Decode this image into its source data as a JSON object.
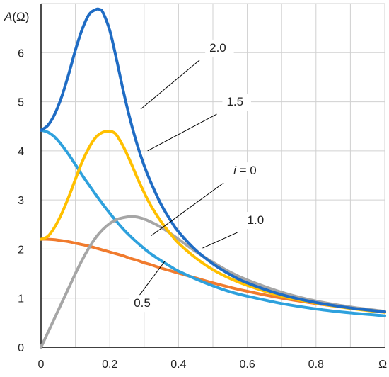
{
  "chart_data": {
    "type": "line",
    "ylabel": "A(Ω)",
    "xlabel": "Ω",
    "xlim": [
      0,
      1.0
    ],
    "ylim": [
      0,
      7.0
    ],
    "x_ticks": [
      "0",
      "0.2",
      "0.4",
      "0.6",
      "0.8",
      "Ω"
    ],
    "y_ticks": [
      "0",
      "1",
      "2",
      "3",
      "4",
      "5",
      "6"
    ],
    "grid": true,
    "series": [
      {
        "name": "2.0",
        "color": "#1f6cc4",
        "x": [
          0,
          0.02,
          0.04,
          0.06,
          0.08,
          0.1,
          0.12,
          0.14,
          0.16,
          0.17,
          0.18,
          0.2,
          0.22,
          0.24,
          0.26,
          0.28,
          0.3,
          0.32,
          0.35,
          0.38,
          0.4,
          0.45,
          0.5,
          0.55,
          0.6,
          0.7,
          0.8,
          0.9,
          1.0
        ],
        "y": [
          4.42,
          4.52,
          4.75,
          5.1,
          5.55,
          6.05,
          6.48,
          6.78,
          6.88,
          6.88,
          6.82,
          6.45,
          5.85,
          5.2,
          4.62,
          4.12,
          3.7,
          3.35,
          2.9,
          2.55,
          2.35,
          1.98,
          1.7,
          1.48,
          1.31,
          1.07,
          0.91,
          0.8,
          0.72
        ]
      },
      {
        "name": "1.5",
        "color": "#ffc000",
        "x": [
          0,
          0.02,
          0.04,
          0.06,
          0.08,
          0.1,
          0.12,
          0.14,
          0.16,
          0.18,
          0.2,
          0.21,
          0.22,
          0.24,
          0.26,
          0.28,
          0.3,
          0.32,
          0.35,
          0.38,
          0.4,
          0.45,
          0.5,
          0.55,
          0.6,
          0.7,
          0.8,
          0.9,
          1.0
        ],
        "y": [
          2.2,
          2.26,
          2.45,
          2.72,
          3.05,
          3.42,
          3.78,
          4.07,
          4.28,
          4.38,
          4.4,
          4.38,
          4.32,
          4.08,
          3.78,
          3.45,
          3.15,
          2.88,
          2.55,
          2.28,
          2.12,
          1.82,
          1.58,
          1.4,
          1.26,
          1.04,
          0.9,
          0.79,
          0.71
        ]
      },
      {
        "name": "i = 0",
        "color": "#a6a6a6",
        "x": [
          0,
          0.02,
          0.04,
          0.06,
          0.08,
          0.1,
          0.12,
          0.14,
          0.16,
          0.18,
          0.2,
          0.22,
          0.24,
          0.26,
          0.28,
          0.3,
          0.32,
          0.35,
          0.38,
          0.4,
          0.45,
          0.5,
          0.55,
          0.6,
          0.7,
          0.8,
          0.9,
          1.0
        ],
        "y": [
          0.0,
          0.3,
          0.6,
          0.9,
          1.2,
          1.5,
          1.78,
          2.03,
          2.24,
          2.4,
          2.52,
          2.6,
          2.64,
          2.66,
          2.65,
          2.61,
          2.55,
          2.44,
          2.3,
          2.2,
          1.95,
          1.73,
          1.53,
          1.37,
          1.12,
          0.94,
          0.82,
          0.73
        ]
      },
      {
        "name": "1.0",
        "color": "#2ea1dd",
        "x": [
          0,
          0.02,
          0.04,
          0.06,
          0.08,
          0.1,
          0.12,
          0.14,
          0.16,
          0.18,
          0.2,
          0.22,
          0.24,
          0.26,
          0.28,
          0.3,
          0.32,
          0.35,
          0.38,
          0.4,
          0.45,
          0.5,
          0.55,
          0.6,
          0.7,
          0.8,
          0.9,
          1.0
        ],
        "y": [
          4.42,
          4.38,
          4.28,
          4.12,
          3.93,
          3.72,
          3.5,
          3.3,
          3.1,
          2.91,
          2.73,
          2.56,
          2.4,
          2.26,
          2.13,
          2.01,
          1.9,
          1.76,
          1.63,
          1.55,
          1.39,
          1.25,
          1.13,
          1.04,
          0.89,
          0.78,
          0.7,
          0.64
        ]
      },
      {
        "name": "0.5",
        "color": "#f07b2e",
        "x": [
          0,
          0.02,
          0.04,
          0.06,
          0.08,
          0.1,
          0.12,
          0.14,
          0.16,
          0.18,
          0.2,
          0.22,
          0.24,
          0.26,
          0.28,
          0.3,
          0.32,
          0.35,
          0.38,
          0.4,
          0.45,
          0.5,
          0.55,
          0.6,
          0.7,
          0.8,
          0.9,
          1.0
        ],
        "y": [
          2.2,
          2.2,
          2.19,
          2.17,
          2.15,
          2.12,
          2.09,
          2.06,
          2.02,
          1.98,
          1.94,
          1.9,
          1.86,
          1.81,
          1.77,
          1.72,
          1.68,
          1.61,
          1.55,
          1.51,
          1.41,
          1.31,
          1.22,
          1.14,
          1.0,
          0.89,
          0.8,
          0.72
        ]
      }
    ],
    "annotations": [
      {
        "text": "2.0",
        "series": "2.0",
        "point": [
          0.29,
          4.85
        ],
        "label_at": [
          0.49,
          6.02
        ]
      },
      {
        "text": "1.5",
        "series": "1.5",
        "point": [
          0.31,
          4.0
        ],
        "label_at": [
          0.54,
          4.92
        ]
      },
      {
        "text": "i = 0",
        "series": "i = 0",
        "point": [
          0.32,
          2.27
        ],
        "label_at": [
          0.56,
          3.52
        ]
      },
      {
        "text": "1.0",
        "series": "1.0",
        "point": [
          0.47,
          2.02
        ],
        "label_at": [
          0.6,
          2.51
        ]
      },
      {
        "text": "0.5",
        "series": "0.5",
        "point": [
          0.36,
          1.75
        ],
        "label_at": [
          0.27,
          0.82
        ]
      }
    ]
  }
}
